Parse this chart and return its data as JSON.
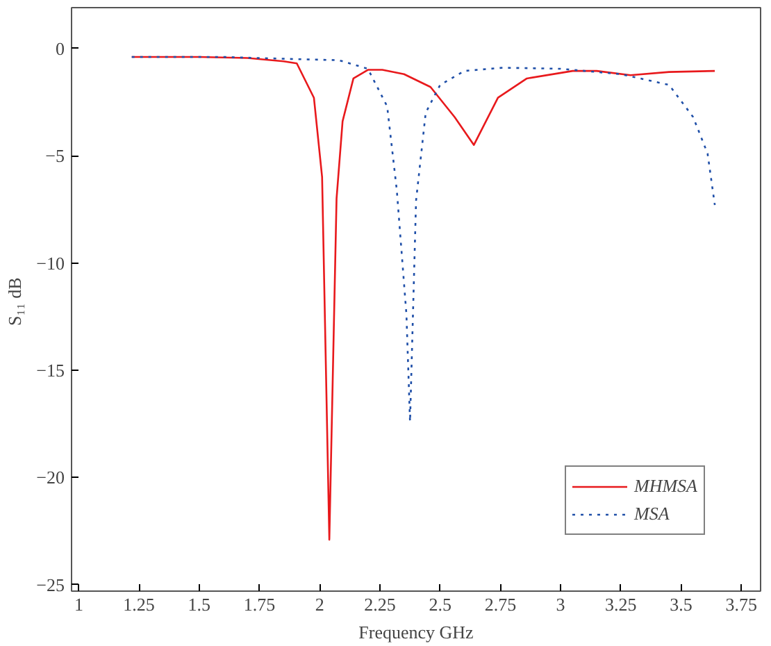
{
  "chart_data": {
    "type": "line",
    "xlabel": "Frequency GHz",
    "ylabel": "S₁₁  dB",
    "xlim": [
      0.97,
      3.83
    ],
    "ylim": [
      -25.3,
      1.9
    ],
    "xticks": [
      1,
      1.25,
      1.5,
      1.75,
      2,
      2.25,
      2.5,
      2.75,
      3,
      3.25,
      3.5,
      3.75
    ],
    "yticks": [
      {
        "value": -25,
        "label": "−25"
      },
      {
        "value": -20,
        "label": "−20"
      },
      {
        "value": -15,
        "label": "−15"
      },
      {
        "value": -10,
        "label": "−10"
      },
      {
        "value": -5,
        "label": "−5"
      },
      0
    ],
    "grid": false,
    "legend": "bottom right",
    "marker": "none",
    "series": [
      {
        "name": "MHMSA",
        "color": "#e8191c",
        "line_style": "solid",
        "x": [
          1.22,
          1.5,
          1.7,
          1.85,
          1.905,
          1.976,
          2.01,
          2.04,
          2.07,
          2.095,
          2.14,
          2.2,
          2.26,
          2.35,
          2.46,
          2.56,
          2.64,
          2.74,
          2.86,
          3.05,
          3.15,
          3.29,
          3.45,
          3.64
        ],
        "values": [
          -0.4,
          -0.4,
          -0.45,
          -0.6,
          -0.7,
          -2.3,
          -6.0,
          -22.9,
          -7.0,
          -3.4,
          -1.4,
          -1.0,
          -1.0,
          -1.2,
          -1.8,
          -3.2,
          -4.5,
          -2.3,
          -1.4,
          -1.05,
          -1.05,
          -1.25,
          -1.1,
          -1.05
        ]
      },
      {
        "name": "MSA",
        "color": "#1f4fa8",
        "line_style": "dotted",
        "x": [
          1.22,
          1.6,
          1.9,
          2.08,
          2.2,
          2.28,
          2.32,
          2.36,
          2.375,
          2.4,
          2.44,
          2.5,
          2.6,
          2.76,
          3.0,
          3.25,
          3.45,
          3.55,
          3.61,
          3.64
        ],
        "values": [
          -0.4,
          -0.4,
          -0.5,
          -0.55,
          -0.95,
          -2.7,
          -6.6,
          -12.4,
          -17.4,
          -7.1,
          -3.0,
          -1.7,
          -1.05,
          -0.9,
          -0.95,
          -1.2,
          -1.7,
          -3.2,
          -4.9,
          -7.3
        ]
      }
    ]
  }
}
